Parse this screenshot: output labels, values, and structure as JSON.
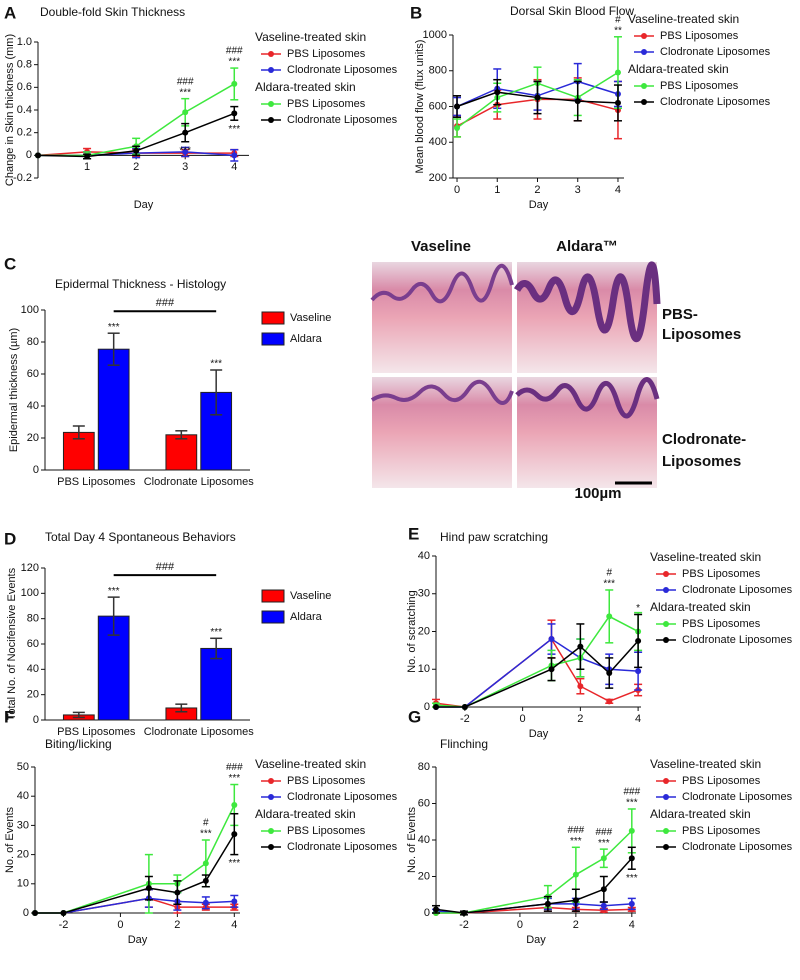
{
  "chart_data": [
    {
      "panel": "A",
      "type": "line",
      "title": "Double-fold Skin Thickness",
      "xlabel": "Day",
      "ylabel": "Change in Skin thickness (mm)",
      "x": [
        0,
        1,
        2,
        3,
        4
      ],
      "xlim": [
        0,
        4.3
      ],
      "xticks": [
        1,
        2,
        3,
        4
      ],
      "ylim": [
        -0.2,
        1.0
      ],
      "yticks": [
        -0.2,
        0,
        0.2,
        0.4,
        0.6,
        0.8,
        {
          "value": 1.0,
          "label": "1.0"
        }
      ],
      "series": [
        {
          "name": "PBS Liposomes",
          "color": "#e8262a",
          "values": [
            0,
            0.03,
            0.02,
            0.02,
            0.02
          ],
          "errors": [
            0,
            0.03,
            0.03,
            0.03,
            0.03
          ]
        },
        {
          "name": "Clodronate Liposomes",
          "color": "#2a2ad8",
          "values": [
            0,
            0,
            0.02,
            0.03,
            0
          ],
          "errors": [
            0,
            0.03,
            0.04,
            0.04,
            0.05
          ]
        },
        {
          "name": "PBS Liposomes",
          "color": "#3ee83e",
          "values": [
            0,
            0,
            0.08,
            0.38,
            0.63
          ],
          "errors": [
            0,
            0.03,
            0.07,
            0.12,
            0.14
          ]
        },
        {
          "name": "Clodronate Liposomes",
          "color": "#000000",
          "values": [
            0,
            -0.01,
            0.04,
            0.2,
            0.37
          ],
          "errors": [
            0,
            0.02,
            0.04,
            0.08,
            0.06
          ]
        }
      ],
      "legend_groups": [
        {
          "title": "Vaseline-treated skin",
          "series": [
            0,
            1
          ]
        },
        {
          "title": "Aldara-treated skin",
          "series": [
            2,
            3
          ]
        }
      ],
      "annotations": [
        {
          "text": "***",
          "series": 2,
          "index": 3,
          "side": "above"
        },
        {
          "text": "###",
          "series": 2,
          "index": 3,
          "side": "above"
        },
        {
          "text": "***",
          "series": 3,
          "index": 3,
          "side": "below"
        },
        {
          "text": "***",
          "series": 2,
          "index": 4,
          "side": "above"
        },
        {
          "text": "###",
          "series": 2,
          "index": 4,
          "side": "above"
        },
        {
          "text": "***",
          "series": 3,
          "index": 4,
          "side": "below"
        }
      ]
    },
    {
      "panel": "B",
      "type": "line",
      "title": "Dorsal Skin Blood Flow",
      "xlabel": "Day",
      "ylabel": "Mean blood flow (flux units)",
      "x": [
        0,
        1,
        2,
        3,
        4
      ],
      "xlim": [
        -0.1,
        4.15
      ],
      "xticks": [
        0,
        1,
        2,
        3,
        4
      ],
      "ylim": [
        200,
        1000
      ],
      "yticks": [
        200,
        400,
        600,
        800,
        1000
      ],
      "series": [
        {
          "name": "PBS Liposomes",
          "color": "#e8262a",
          "values": [
            490,
            610,
            640,
            640,
            580
          ],
          "errors": [
            60,
            80,
            110,
            120,
            160
          ]
        },
        {
          "name": "Clodronate Liposomes",
          "color": "#2a2ad8",
          "values": [
            600,
            700,
            660,
            740,
            670
          ],
          "errors": [
            50,
            110,
            80,
            100,
            70
          ]
        },
        {
          "name": "PBS Liposomes",
          "color": "#3ee83e",
          "values": [
            480,
            650,
            730,
            650,
            790
          ],
          "errors": [
            50,
            80,
            90,
            100,
            200
          ]
        },
        {
          "name": "Clodronate Liposomes",
          "color": "#000000",
          "values": [
            600,
            680,
            650,
            630,
            620
          ],
          "errors": [
            60,
            70,
            90,
            110,
            100
          ]
        }
      ],
      "legend_groups": [
        {
          "title": "Vaseline-treated skin",
          "series": [
            0,
            1
          ]
        },
        {
          "title": "Aldara-treated skin",
          "series": [
            2,
            3
          ]
        }
      ],
      "annotations": [
        {
          "text": "**",
          "series": 2,
          "index": 4,
          "side": "above"
        },
        {
          "text": "#",
          "series": 2,
          "index": 4,
          "side": "above"
        }
      ]
    },
    {
      "panel": "C",
      "type": "bar",
      "title": "Epidermal Thickness - Histology",
      "ylabel": "Epidermal thickness (µm)",
      "categories": [
        "PBS Liposomes",
        "Clodronate Liposomes"
      ],
      "ylim": [
        0,
        100
      ],
      "yticks": [
        0,
        20,
        40,
        60,
        80,
        100
      ],
      "series": [
        {
          "name": "Vaseline",
          "color": "#ff0000",
          "values": [
            23.5,
            22
          ],
          "errors": [
            4,
            2.5
          ]
        },
        {
          "name": "Aldara",
          "color": "#0000ff",
          "values": [
            75.5,
            48.5
          ],
          "errors": [
            10,
            14
          ]
        }
      ],
      "annotations": [
        {
          "text": "***",
          "series": 1,
          "index": 0,
          "side": "above"
        },
        {
          "text": "***",
          "series": 1,
          "index": 1,
          "side": "above"
        }
      ],
      "bracket": {
        "text": "###",
        "series": 1,
        "indices": [
          0,
          1
        ]
      }
    },
    {
      "panel": "D",
      "type": "bar",
      "title": "Total Day 4 Spontaneous Behaviors",
      "ylabel": "Total No. of Nocifensive Events",
      "categories": [
        "PBS Liposomes",
        "Clodronate Liposomes"
      ],
      "ylim": [
        0,
        120
      ],
      "yticks": [
        0,
        20,
        40,
        60,
        80,
        100,
        120
      ],
      "series": [
        {
          "name": "Vaseline",
          "color": "#ff0000",
          "values": [
            4,
            9.5
          ],
          "errors": [
            2,
            3
          ]
        },
        {
          "name": "Aldara",
          "color": "#0000ff",
          "values": [
            82,
            56.5
          ],
          "errors": [
            15,
            8
          ]
        }
      ],
      "annotations": [
        {
          "text": "***",
          "series": 1,
          "index": 0,
          "side": "above"
        },
        {
          "text": "***",
          "series": 1,
          "index": 1,
          "side": "above"
        }
      ],
      "bracket": {
        "text": "###",
        "series": 1,
        "indices": [
          0,
          1
        ]
      }
    },
    {
      "panel": "E",
      "type": "line",
      "title": "Hind paw scratching",
      "xlabel": "Day",
      "ylabel": "No. of scratching",
      "x": [
        -3,
        -2,
        1,
        2,
        3,
        4
      ],
      "xlim": [
        -3,
        4.1
      ],
      "xticks": [
        -2,
        0,
        2,
        4
      ],
      "ylim": [
        0,
        40
      ],
      "yticks": [
        0,
        10,
        20,
        30,
        40
      ],
      "series": [
        {
          "name": "PBS Liposomes",
          "color": "#e8262a",
          "values": [
            1,
            0,
            18,
            5.5,
            1.5,
            4.5
          ],
          "errors": [
            1,
            0,
            5,
            2,
            0.5,
            1.5
          ]
        },
        {
          "name": "Clodronate Liposomes",
          "color": "#2a2ad8",
          "values": [
            0,
            0,
            18,
            13,
            10,
            9.5
          ],
          "errors": [
            0,
            0,
            4,
            5,
            4,
            5
          ]
        },
        {
          "name": "PBS Liposomes",
          "color": "#3ee83e",
          "values": [
            0.5,
            0,
            11,
            13,
            24,
            20
          ],
          "errors": [
            0.5,
            0,
            4,
            5,
            7,
            5
          ]
        },
        {
          "name": "Clodronate Liposomes",
          "color": "#000000",
          "values": [
            0,
            0,
            10,
            16,
            9,
            17.5
          ],
          "errors": [
            0,
            0,
            3,
            6,
            4,
            7
          ]
        }
      ],
      "legend_groups": [
        {
          "title": "Vaseline-treated skin",
          "series": [
            0,
            1
          ]
        },
        {
          "title": "Aldara-treated skin",
          "series": [
            2,
            3
          ]
        }
      ],
      "annotations": [
        {
          "text": "***",
          "series": 2,
          "index": 4,
          "side": "above"
        },
        {
          "text": "#",
          "series": 2,
          "index": 4,
          "side": "above"
        },
        {
          "text": "*",
          "series": 3,
          "index": 5,
          "side": "above"
        }
      ]
    },
    {
      "panel": "F",
      "type": "line",
      "title": "Biting/licking",
      "xlabel": "Day",
      "ylabel": "No. of Events",
      "x": [
        -3,
        -2,
        1,
        2,
        3,
        4
      ],
      "xlim": [
        -3,
        4.2
      ],
      "xticks": [
        -2,
        0,
        2,
        4
      ],
      "ylim": [
        0,
        50
      ],
      "yticks": [
        0,
        10,
        20,
        30,
        40,
        50
      ],
      "series": [
        {
          "name": "PBS Liposomes",
          "color": "#e8262a",
          "values": [
            0,
            0,
            5,
            2,
            2,
            2
          ],
          "errors": [
            0,
            0,
            3,
            2,
            1,
            1
          ]
        },
        {
          "name": "Clodronate Liposomes",
          "color": "#2a2ad8",
          "values": [
            0,
            0,
            5,
            4,
            3.5,
            4
          ],
          "errors": [
            0,
            0,
            3,
            3,
            2,
            2
          ]
        },
        {
          "name": "PBS Liposomes",
          "color": "#3ee83e",
          "values": [
            0,
            0,
            10,
            10,
            17,
            37
          ],
          "errors": [
            0,
            0,
            10,
            3,
            8,
            7
          ]
        },
        {
          "name": "Clodronate Liposomes",
          "color": "#000000",
          "values": [
            0,
            0,
            8.5,
            7,
            11,
            27
          ],
          "errors": [
            0,
            0,
            4,
            4,
            2,
            7
          ]
        }
      ],
      "legend_groups": [
        {
          "title": "Vaseline-treated skin",
          "series": [
            0,
            1
          ]
        },
        {
          "title": "Aldara-treated skin",
          "series": [
            2,
            3
          ]
        }
      ],
      "annotations": [
        {
          "text": "***",
          "series": 2,
          "index": 4,
          "side": "above"
        },
        {
          "text": "#",
          "series": 2,
          "index": 4,
          "side": "above"
        },
        {
          "text": "***",
          "series": 2,
          "index": 5,
          "side": "above"
        },
        {
          "text": "###",
          "series": 2,
          "index": 5,
          "side": "above"
        },
        {
          "text": "***",
          "series": 3,
          "index": 5,
          "side": "below"
        }
      ]
    },
    {
      "panel": "G",
      "type": "line",
      "title": "Flinching",
      "xlabel": "Day",
      "ylabel": "No. of Events",
      "x": [
        -3,
        -2,
        1,
        2,
        3,
        4
      ],
      "xlim": [
        -3,
        4.15
      ],
      "xticks": [
        -2,
        0,
        2,
        4
      ],
      "ylim": [
        0,
        80
      ],
      "yticks": [
        0,
        20,
        40,
        60,
        80
      ],
      "series": [
        {
          "name": "PBS Liposomes",
          "color": "#e8262a",
          "values": [
            0,
            0,
            3,
            2,
            1.5,
            2
          ],
          "errors": [
            0,
            0,
            2,
            1,
            1,
            1
          ]
        },
        {
          "name": "Clodronate Liposomes",
          "color": "#2a2ad8",
          "values": [
            1,
            0,
            5,
            5,
            4,
            5
          ],
          "errors": [
            1,
            0,
            3,
            3,
            2,
            3
          ]
        },
        {
          "name": "PBS Liposomes",
          "color": "#3ee83e",
          "values": [
            0,
            0,
            9,
            21,
            30,
            45
          ],
          "errors": [
            0,
            0,
            6,
            15,
            5,
            12
          ]
        },
        {
          "name": "Clodronate Liposomes",
          "color": "#000000",
          "values": [
            2,
            0,
            5,
            7,
            13,
            30
          ],
          "errors": [
            2,
            1,
            4,
            6,
            7,
            6
          ]
        }
      ],
      "legend_groups": [
        {
          "title": "Vaseline-treated skin",
          "series": [
            0,
            1
          ]
        },
        {
          "title": "Aldara-treated skin",
          "series": [
            2,
            3
          ]
        }
      ],
      "annotations": [
        {
          "text": "***",
          "series": 2,
          "index": 3,
          "side": "above"
        },
        {
          "text": "###",
          "series": 2,
          "index": 3,
          "side": "above"
        },
        {
          "text": "***",
          "series": 2,
          "index": 4,
          "side": "above"
        },
        {
          "text": "###",
          "series": 2,
          "index": 4,
          "side": "above"
        },
        {
          "text": "***",
          "series": 2,
          "index": 5,
          "side": "above"
        },
        {
          "text": "###",
          "series": 2,
          "index": 5,
          "side": "above"
        },
        {
          "text": "***",
          "series": 3,
          "index": 5,
          "side": "below"
        }
      ]
    }
  ],
  "histology": {
    "columns": [
      "Vaseline",
      "Aldara™"
    ],
    "rows": [
      [
        "PBS-",
        "Liposomes"
      ],
      [
        "Clodronate-",
        "Liposomes"
      ]
    ],
    "scale_bar": "100µm"
  }
}
